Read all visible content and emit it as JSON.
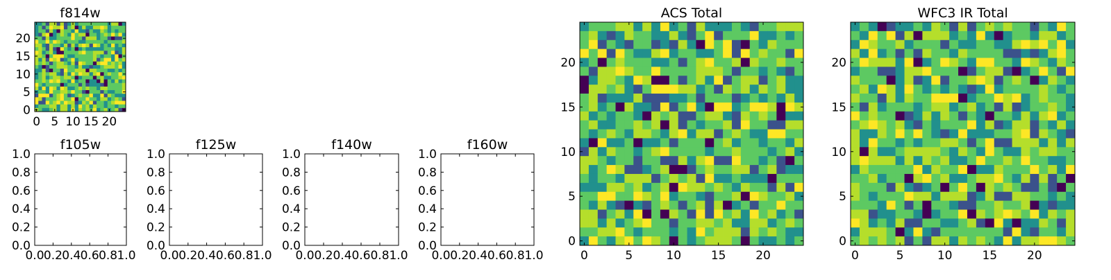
{
  "chart_data": [
    {
      "type": "heatmap",
      "title": "f814w",
      "xticks": [
        "0",
        "5",
        "10",
        "15",
        "20"
      ],
      "yticks": [
        "0",
        "5",
        "10",
        "15",
        "20"
      ],
      "xlim": [
        -0.5,
        24.5
      ],
      "ylim": [
        -0.5,
        24.5
      ],
      "grid_size": 25,
      "colormap": [
        "#440154",
        "#3b528b",
        "#21908d",
        "#5dc962",
        "#b5de2b",
        "#fde725"
      ],
      "seed": 11
    },
    {
      "type": "heatmap",
      "title": "f105w",
      "xticks": [
        "0.0",
        "0.2",
        "0.4",
        "0.6",
        "0.8",
        "1.0"
      ],
      "yticks": [
        "0.0",
        "0.2",
        "0.4",
        "0.6",
        "0.8",
        "1.0"
      ],
      "xlim": [
        0,
        1
      ],
      "ylim": [
        0,
        1
      ]
    },
    {
      "type": "heatmap",
      "title": "f125w",
      "xticks": [
        "0.0",
        "0.2",
        "0.4",
        "0.6",
        "0.8",
        "1.0"
      ],
      "yticks": [
        "0.0",
        "0.2",
        "0.4",
        "0.6",
        "0.8",
        "1.0"
      ],
      "xlim": [
        0,
        1
      ],
      "ylim": [
        0,
        1
      ]
    },
    {
      "type": "heatmap",
      "title": "f140w",
      "xticks": [
        "0.0",
        "0.2",
        "0.4",
        "0.6",
        "0.8",
        "1.0"
      ],
      "yticks": [
        "0.0",
        "0.2",
        "0.4",
        "0.6",
        "0.8",
        "1.0"
      ],
      "xlim": [
        0,
        1
      ],
      "ylim": [
        0,
        1
      ]
    },
    {
      "type": "heatmap",
      "title": "f160w",
      "xticks": [
        "0.0",
        "0.2",
        "0.4",
        "0.6",
        "0.8",
        "1.0"
      ],
      "yticks": [
        "0.0",
        "0.2",
        "0.4",
        "0.6",
        "0.8",
        "1.0"
      ],
      "xlim": [
        0,
        1
      ],
      "ylim": [
        0,
        1
      ]
    },
    {
      "type": "heatmap",
      "title": "ACS Total",
      "xticks": [
        "0",
        "5",
        "10",
        "15",
        "20"
      ],
      "yticks": [
        "0",
        "5",
        "10",
        "15",
        "20"
      ],
      "xlim": [
        -0.5,
        24.5
      ],
      "ylim": [
        -0.5,
        24.5
      ],
      "grid_size": 25,
      "colormap": [
        "#440154",
        "#3b528b",
        "#21908d",
        "#5dc962",
        "#b5de2b",
        "#fde725"
      ],
      "seed": 23
    },
    {
      "type": "heatmap",
      "title": "WFC3 IR Total",
      "xticks": [
        "0",
        "5",
        "10",
        "15",
        "20"
      ],
      "yticks": [
        "0",
        "5",
        "10",
        "15",
        "20"
      ],
      "xlim": [
        -0.5,
        24.5
      ],
      "ylim": [
        -0.5,
        24.5
      ],
      "grid_size": 25,
      "colormap": [
        "#440154",
        "#3b528b",
        "#21908d",
        "#5dc962",
        "#b5de2b",
        "#fde725"
      ],
      "seed": 37
    }
  ]
}
